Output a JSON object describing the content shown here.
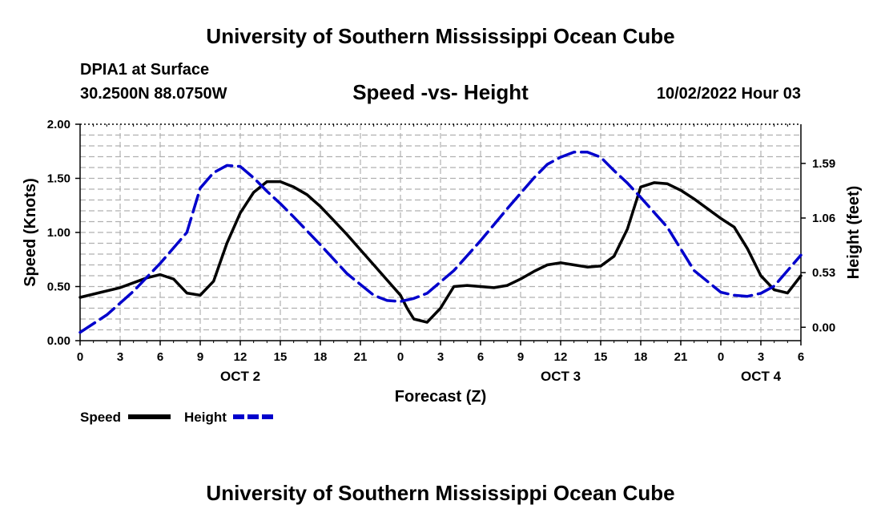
{
  "header": {
    "title": "University of Southern Mississippi Ocean Cube"
  },
  "footer": {
    "title": "University of Southern Mississippi Ocean Cube"
  },
  "info": {
    "station": "DPIA1 at Surface",
    "coords": "30.2500N  88.0750W",
    "datetime": "10/02/2022 Hour 03"
  },
  "chart_data": {
    "type": "line",
    "title": "Speed -vs- Height",
    "xlabel": "Forecast (Z)",
    "ylabel": "Speed (Knots)",
    "y2label": "Height (feet)",
    "x_unit": "hours from OCT 2 00Z",
    "xlim": [
      0,
      54
    ],
    "ylim": [
      0,
      2.0
    ],
    "y2lim": [
      -0.13,
      1.97
    ],
    "x_ticks": [
      0,
      3,
      6,
      9,
      12,
      15,
      18,
      21,
      24,
      27,
      30,
      33,
      36,
      39,
      42,
      45,
      48,
      51,
      54
    ],
    "x_tick_labels": [
      "0",
      "3",
      "6",
      "9",
      "12",
      "15",
      "18",
      "21",
      "0",
      "3",
      "6",
      "9",
      "12",
      "15",
      "18",
      "21",
      "0",
      "3",
      "6"
    ],
    "y_ticks": [
      0,
      0.5,
      1.0,
      1.5,
      2.0
    ],
    "y_tick_labels": [
      "0.00",
      "0.50",
      "1.00",
      "1.50",
      "2.00"
    ],
    "y2_ticks": [
      0,
      0.53,
      1.06,
      1.59
    ],
    "y2_tick_labels": [
      "0.00",
      "0.53",
      "1.06",
      "1.59"
    ],
    "date_labels": [
      {
        "x": 12,
        "label": "OCT 2"
      },
      {
        "x": 36,
        "label": "OCT 3"
      },
      {
        "x": 51,
        "label": "OCT 4"
      }
    ],
    "grid": true,
    "series": [
      {
        "name": "Speed",
        "color": "#000000",
        "style": "solid",
        "axis": "left",
        "x": [
          0,
          3,
          5,
          6,
          7,
          8,
          9,
          10,
          11,
          12,
          13,
          14,
          15,
          16,
          17,
          18,
          19,
          20,
          21,
          22,
          23,
          24,
          24.5,
          25,
          26,
          27,
          28,
          29,
          30,
          31,
          32,
          33,
          34,
          35,
          36,
          37,
          38,
          39,
          40,
          41,
          42,
          43,
          44,
          45,
          46,
          47,
          48,
          49,
          50,
          51,
          52,
          53,
          54
        ],
        "values": [
          0.4,
          0.49,
          0.58,
          0.61,
          0.57,
          0.44,
          0.42,
          0.55,
          0.9,
          1.18,
          1.37,
          1.47,
          1.47,
          1.42,
          1.35,
          1.24,
          1.11,
          0.98,
          0.84,
          0.7,
          0.56,
          0.42,
          0.3,
          0.2,
          0.17,
          0.3,
          0.5,
          0.51,
          0.5,
          0.49,
          0.51,
          0.57,
          0.64,
          0.7,
          0.72,
          0.7,
          0.68,
          0.69,
          0.78,
          1.03,
          1.42,
          1.46,
          1.45,
          1.39,
          1.31,
          1.22,
          1.13,
          1.05,
          0.85,
          0.6,
          0.47,
          0.44,
          0.6
        ]
      },
      {
        "name": "Height",
        "color": "#0000cc",
        "style": "dashed",
        "axis": "right",
        "x": [
          0,
          2,
          4,
          6,
          8,
          9,
          10,
          11,
          12,
          13,
          14,
          15,
          16,
          18,
          20,
          22,
          23,
          24,
          25,
          26,
          28,
          30,
          32,
          34,
          35,
          36,
          37,
          38,
          39,
          40,
          41,
          42,
          44,
          46,
          48,
          49,
          50,
          51,
          52,
          53,
          54
        ],
        "values": [
          -0.05,
          0.12,
          0.35,
          0.62,
          0.92,
          1.35,
          1.5,
          1.57,
          1.56,
          1.45,
          1.32,
          1.2,
          1.07,
          0.8,
          0.52,
          0.31,
          0.26,
          0.25,
          0.28,
          0.33,
          0.55,
          0.84,
          1.15,
          1.45,
          1.58,
          1.65,
          1.7,
          1.7,
          1.65,
          1.52,
          1.4,
          1.26,
          0.97,
          0.55,
          0.34,
          0.31,
          0.3,
          0.33,
          0.4,
          0.55,
          0.7
        ]
      }
    ]
  }
}
